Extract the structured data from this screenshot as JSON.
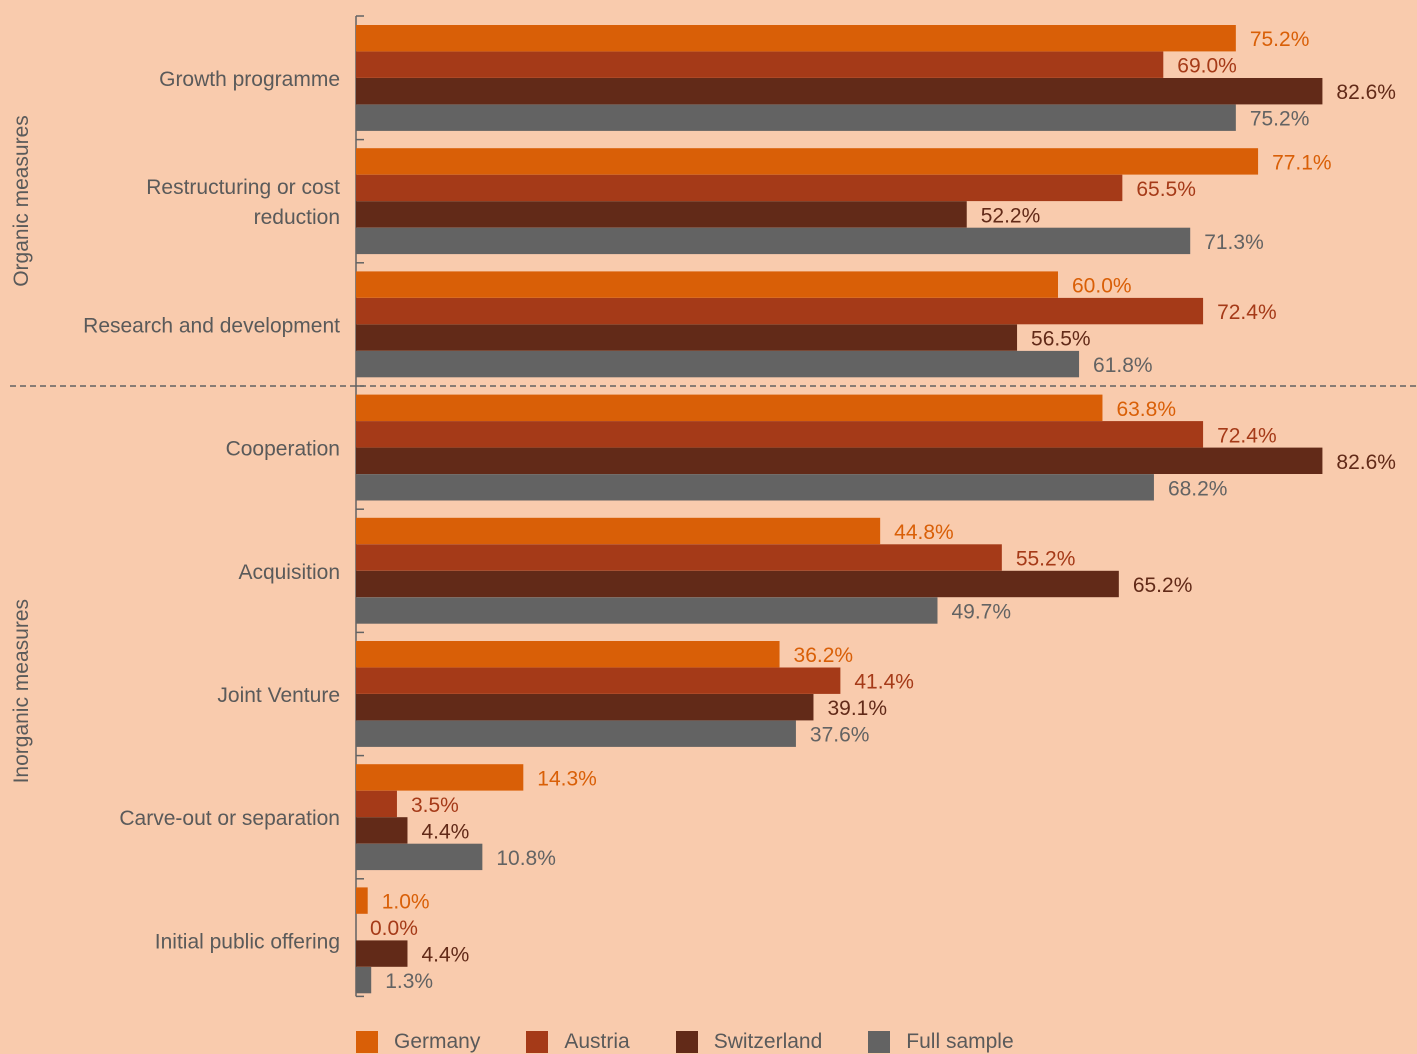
{
  "chart_data": {
    "type": "bar",
    "orientation": "horizontal",
    "xlim": [
      0,
      100
    ],
    "grid": false,
    "legend_position": "bottom",
    "groups": [
      {
        "label": "Organic measures",
        "categories": [
          "Growth programme",
          "Restructuring or cost reduction",
          "Research and development"
        ]
      },
      {
        "label": "Inorganic measures",
        "categories": [
          "Cooperation",
          "Acquisition",
          "Joint Venture",
          "Carve-out or separation",
          "Initial public offering"
        ]
      }
    ],
    "categories": [
      "Growth programme",
      "Restructuring or cost reduction",
      "Research and development",
      "Cooperation",
      "Acquisition",
      "Joint Venture",
      "Carve-out or separation",
      "Initial public offering"
    ],
    "category_lines": [
      [
        "Growth programme"
      ],
      [
        "Restructuring or cost",
        "reduction"
      ],
      [
        "Research and development"
      ],
      [
        "Cooperation"
      ],
      [
        "Acquisition"
      ],
      [
        "Joint Venture"
      ],
      [
        "Carve-out or separation"
      ],
      [
        "Initial public offering"
      ]
    ],
    "series": [
      {
        "name": "Germany",
        "color": "#d95f07",
        "label_color": "#d95f07",
        "values": [
          75.2,
          77.1,
          60.0,
          63.8,
          44.8,
          36.2,
          14.3,
          1.0
        ],
        "labels": [
          "75.2%",
          "77.1%",
          "60.0%",
          "63.8%",
          "44.8%",
          "36.2%",
          "14.3%",
          "1.0%"
        ]
      },
      {
        "name": "Austria",
        "color": "#a53a18",
        "label_color": "#a53a18",
        "values": [
          69.0,
          65.5,
          72.4,
          72.4,
          55.2,
          41.4,
          3.5,
          0.0
        ],
        "labels": [
          "69.0%",
          "65.5%",
          "72.4%",
          "72.4%",
          "55.2%",
          "41.4%",
          "3.5%",
          "0.0%"
        ]
      },
      {
        "name": "Switzerland",
        "color": "#622a18",
        "label_color": "#622a18",
        "values": [
          82.6,
          52.2,
          56.5,
          82.6,
          65.2,
          39.1,
          4.4,
          4.4
        ],
        "labels": [
          "82.6%",
          "52.2%",
          "56.5%",
          "82.6%",
          "65.2%",
          "39.1%",
          "4.4%",
          "4.4%"
        ]
      },
      {
        "name": "Full sample",
        "color": "#636363",
        "label_color": "#636363",
        "values": [
          75.2,
          71.3,
          61.8,
          68.2,
          49.7,
          37.6,
          10.8,
          1.3
        ],
        "labels": [
          "75.2%",
          "71.3%",
          "61.8%",
          "68.2%",
          "49.7%",
          "37.6%",
          "10.8%",
          "1.3%"
        ]
      }
    ]
  },
  "colors": {
    "background": "#f9cbad",
    "axis": "#636363",
    "text": "#5a5a5a"
  }
}
